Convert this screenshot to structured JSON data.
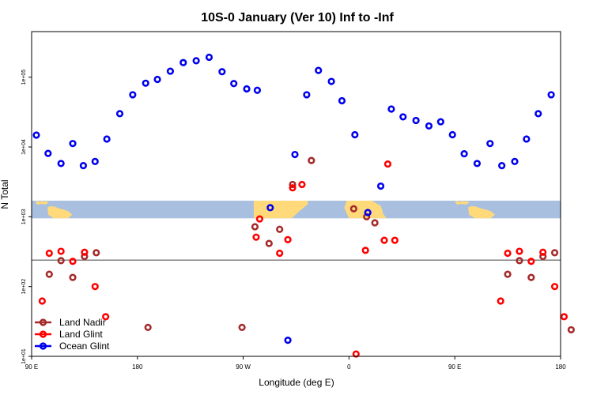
{
  "chart_data": {
    "type": "scatter",
    "title": "10S-0 January (Ver 10)   Inf to -Inf",
    "xlabel": "Longitude (deg E)",
    "ylabel": "N Total",
    "x_ticks": [
      {
        "value": 90,
        "label": "90 E"
      },
      {
        "value": 180,
        "label": "180"
      },
      {
        "value": 270,
        "label": "90 W"
      },
      {
        "value": 360,
        "label": "0"
      },
      {
        "value": 450,
        "label": "90 E"
      },
      {
        "value": 540,
        "label": "180"
      }
    ],
    "xlim": [
      90,
      540
    ],
    "y_scale": "log",
    "y_ticks": [
      {
        "value": 10,
        "label": "1e+01"
      },
      {
        "value": 100,
        "label": "1e+02"
      },
      {
        "value": 1000,
        "label": "1e+03"
      },
      {
        "value": 10000,
        "label": "1e+04"
      },
      {
        "value": 100000,
        "label": "1e+05"
      }
    ],
    "ylim": [
      10,
      450000
    ],
    "reference_line_y": 240,
    "map_band": {
      "y_min": 950,
      "y_max": 1700,
      "ocean_color": "#a8bfe0",
      "land_color": "#ffd97a"
    },
    "legend": {
      "position": "bottom-left"
    },
    "series": [
      {
        "name": "Land Nadir",
        "color": "#a52a2a",
        "points": [
          [
            105,
            150
          ],
          [
            115,
            235
          ],
          [
            125,
            135
          ],
          [
            135,
            270
          ],
          [
            145,
            305
          ],
          [
            189,
            26
          ],
          [
            269,
            26
          ],
          [
            280,
            720
          ],
          [
            292,
            415
          ],
          [
            301,
            660
          ],
          [
            312,
            2900
          ],
          [
            328,
            6400
          ],
          [
            364,
            1300
          ],
          [
            375,
            1000
          ],
          [
            382,
            820
          ],
          [
            495,
            150
          ],
          [
            505,
            235
          ],
          [
            515,
            135
          ],
          [
            525,
            270
          ],
          [
            535,
            305
          ],
          [
            549,
            24
          ]
        ]
      },
      {
        "name": "Land Glint",
        "color": "#ff0000",
        "points": [
          [
            99,
            62
          ],
          [
            105,
            300
          ],
          [
            115,
            320
          ],
          [
            125,
            230
          ],
          [
            135,
            310
          ],
          [
            144,
            100
          ],
          [
            153,
            37
          ],
          [
            281,
            510
          ],
          [
            284,
            930
          ],
          [
            301,
            300
          ],
          [
            308,
            470
          ],
          [
            312,
            2600
          ],
          [
            320,
            2900
          ],
          [
            366,
            10.8
          ],
          [
            374,
            330
          ],
          [
            390,
            460
          ],
          [
            393,
            5700
          ],
          [
            399,
            460
          ],
          [
            489,
            62
          ],
          [
            495,
            300
          ],
          [
            505,
            320
          ],
          [
            515,
            230
          ],
          [
            525,
            310
          ],
          [
            535,
            100
          ],
          [
            543,
            37
          ]
        ]
      },
      {
        "name": "Ocean Glint",
        "color": "#0000ee",
        "points": [
          [
            94,
            14800
          ],
          [
            104,
            8100
          ],
          [
            115,
            5800
          ],
          [
            125,
            11200
          ],
          [
            134,
            5400
          ],
          [
            144,
            6200
          ],
          [
            154,
            13000
          ],
          [
            165,
            30000
          ],
          [
            176,
            56000
          ],
          [
            187,
            82000
          ],
          [
            197,
            93000
          ],
          [
            208,
            122000
          ],
          [
            219,
            162000
          ],
          [
            230,
            172000
          ],
          [
            241,
            193000
          ],
          [
            252,
            120000
          ],
          [
            262,
            81000
          ],
          [
            273,
            68000
          ],
          [
            282,
            65000
          ],
          [
            293,
            1350
          ],
          [
            308,
            17
          ],
          [
            314,
            7800
          ],
          [
            324,
            56000
          ],
          [
            334,
            125000
          ],
          [
            345,
            87000
          ],
          [
            354,
            46000
          ],
          [
            365,
            15000
          ],
          [
            376,
            1150
          ],
          [
            387,
            2750
          ],
          [
            396,
            35000
          ],
          [
            406,
            27000
          ],
          [
            417,
            24000
          ],
          [
            428,
            20000
          ],
          [
            438,
            23000
          ],
          [
            448,
            15000
          ],
          [
            458,
            8000
          ],
          [
            469,
            5800
          ],
          [
            480,
            11200
          ],
          [
            490,
            5400
          ],
          [
            501,
            6200
          ],
          [
            511,
            13000
          ],
          [
            521,
            30000
          ],
          [
            532,
            56000
          ]
        ]
      }
    ]
  }
}
